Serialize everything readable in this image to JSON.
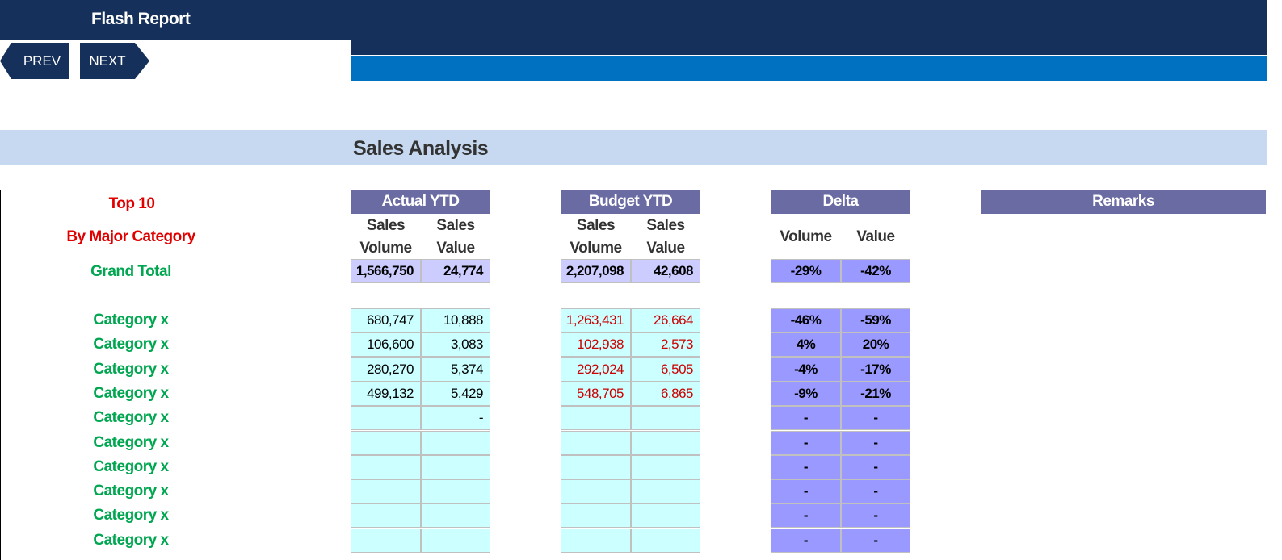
{
  "header": {
    "title": "Flash Report"
  },
  "nav": {
    "prev_label": "PREV",
    "next_label": "NEXT"
  },
  "section": {
    "title": "Sales Analysis"
  },
  "labels": {
    "top10": "Top 10",
    "by_major_category": "By Major Category",
    "grand_total": "Grand Total"
  },
  "groups": {
    "actual": "Actual YTD",
    "budget": "Budget YTD",
    "delta": "Delta",
    "remarks": "Remarks"
  },
  "subheaders": {
    "sales_volume": [
      "Sales",
      "Volume"
    ],
    "sales_value": [
      "Sales",
      "Value"
    ],
    "volume": "Volume",
    "value": "Value"
  },
  "grand_total": {
    "actual_volume": "1,566,750",
    "actual_value": "24,774",
    "budget_volume": "2,207,098",
    "budget_value": "42,608",
    "delta_volume": "-29%",
    "delta_value": "-42%"
  },
  "rows": [
    {
      "label": "Category x",
      "actual_volume": "680,747",
      "actual_value": "10,888",
      "budget_volume": "1,263,431",
      "budget_value": "26,664",
      "delta_volume": "-46%",
      "delta_value": "-59%"
    },
    {
      "label": "Category x",
      "actual_volume": "106,600",
      "actual_value": "3,083",
      "budget_volume": "102,938",
      "budget_value": "2,573",
      "delta_volume": "4%",
      "delta_value": "20%"
    },
    {
      "label": "Category x",
      "actual_volume": "280,270",
      "actual_value": "5,374",
      "budget_volume": "292,024",
      "budget_value": "6,505",
      "delta_volume": "-4%",
      "delta_value": "-17%"
    },
    {
      "label": "Category x",
      "actual_volume": "499,132",
      "actual_value": "5,429",
      "budget_volume": "548,705",
      "budget_value": "6,865",
      "delta_volume": "-9%",
      "delta_value": "-21%"
    },
    {
      "label": "Category x",
      "actual_volume": "",
      "actual_value": "-",
      "budget_volume": "",
      "budget_value": "",
      "delta_volume": "-",
      "delta_value": "-"
    },
    {
      "label": "Category x",
      "actual_volume": "",
      "actual_value": "",
      "budget_volume": "",
      "budget_value": "",
      "delta_volume": "-",
      "delta_value": "-"
    },
    {
      "label": "Category x",
      "actual_volume": "",
      "actual_value": "",
      "budget_volume": "",
      "budget_value": "",
      "delta_volume": "-",
      "delta_value": "-"
    },
    {
      "label": "Category x",
      "actual_volume": "",
      "actual_value": "",
      "budget_volume": "",
      "budget_value": "",
      "delta_volume": "-",
      "delta_value": "-"
    },
    {
      "label": "Category x",
      "actual_volume": "",
      "actual_value": "",
      "budget_volume": "",
      "budget_value": "",
      "delta_volume": "-",
      "delta_value": "-"
    },
    {
      "label": "Category x",
      "actual_volume": "",
      "actual_value": "",
      "budget_volume": "",
      "budget_value": "",
      "delta_volume": "-",
      "delta_value": "-"
    }
  ]
}
